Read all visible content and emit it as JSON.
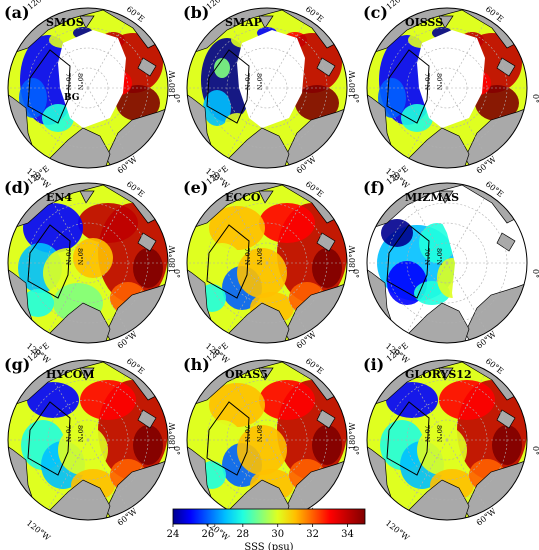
{
  "panels": [
    {
      "letter": "(a)",
      "title": "SMOS",
      "coverage": "partial",
      "style": 0
    },
    {
      "letter": "(b)",
      "title": "SMAP",
      "coverage": "partial",
      "style": 1
    },
    {
      "letter": "(c)",
      "title": "OISSS",
      "coverage": "partial",
      "style": 0
    },
    {
      "letter": "(d)",
      "title": "EN4",
      "coverage": "full",
      "style": 2
    },
    {
      "letter": "(e)",
      "title": "ECCO",
      "coverage": "full",
      "style": 3
    },
    {
      "letter": "(f)",
      "title": "MIZMAS",
      "coverage": "pacific",
      "style": 4
    },
    {
      "letter": "(g)",
      "title": "HYCOM",
      "coverage": "full",
      "style": 5
    },
    {
      "letter": "(h)",
      "title": "ORAS5",
      "coverage": "full",
      "style": 3
    },
    {
      "letter": "(i)",
      "title": "GLORYS12",
      "coverage": "full",
      "style": 5
    }
  ],
  "map_labels": {
    "lon": {
      "e120": "120°E",
      "e60": "60°E",
      "w180": "180°W",
      "e0": "0°",
      "w120": "120°W",
      "w60": "60°W"
    },
    "lat": [
      "70°N",
      "80°N"
    ],
    "region": "BG"
  },
  "colorbar": {
    "label": "SSS (psu)",
    "min": 24,
    "max": 35,
    "ticks": [
      24,
      26,
      28,
      30,
      32,
      34
    ],
    "colors": [
      "#00008f",
      "#0000ff",
      "#0060ff",
      "#00c0ff",
      "#20ffdf",
      "#80ff80",
      "#dfff20",
      "#ffc000",
      "#ff6000",
      "#ff0000",
      "#bf0000",
      "#800000"
    ]
  },
  "colors": {
    "land": "#a9a9a9",
    "no_data": "#ffffff",
    "coast": "#000000",
    "grid": "#b0b0b0"
  }
}
